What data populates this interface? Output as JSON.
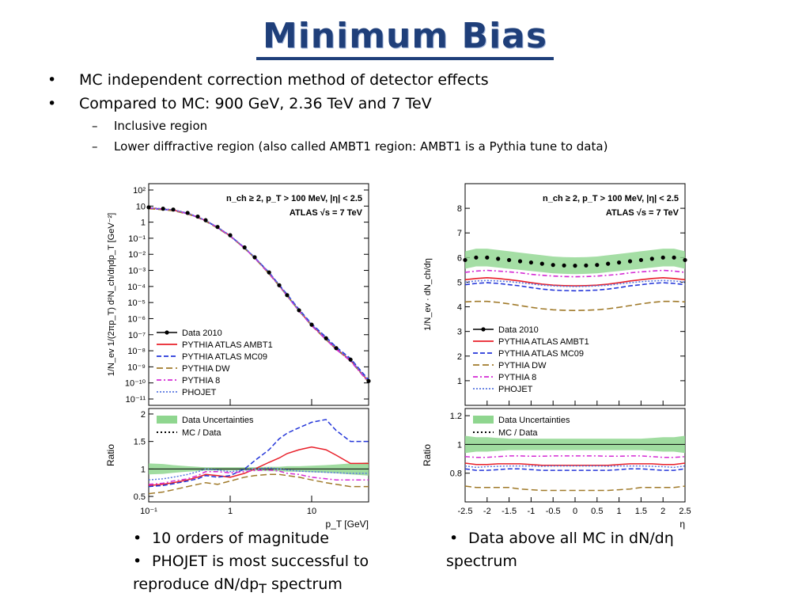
{
  "slide": {
    "title": "Minimum Bias",
    "bullets": [
      {
        "level": 1,
        "text": "MC independent correction method of detector effects"
      },
      {
        "level": 1,
        "text": "Compared to MC: 900 GeV, 2.36 TeV and 7 TeV"
      },
      {
        "level": 2,
        "text": "Inclusive region"
      },
      {
        "level": 2,
        "text": "Lower diffractive region (also called AMBT1 region: AMBT1 is a Pythia tune to data)"
      }
    ],
    "left_caption": {
      "item1": "10 orders of magnitude",
      "item2": "PHOJET is most successful to",
      "item2_cont": "reproduce dN/dp",
      "item2_sub": "T",
      "item2_tail": " spectrum"
    },
    "right_caption": {
      "item1": "Data above all MC in dN/dη",
      "item1_cont": "spectrum"
    }
  },
  "colors": {
    "title": "#1f3f7a",
    "data": "#000000",
    "ambt1": "#e8202a",
    "mc09": "#2436d9",
    "dw": "#a07a2a",
    "pythia8": "#d42ad4",
    "phojet": "#5a78e0",
    "band": "#8fd68f"
  },
  "legend_labels": {
    "data": "Data 2010",
    "ambt1": "PYTHIA ATLAS AMBT1",
    "mc09": "PYTHIA ATLAS MC09",
    "dw": "PYTHIA DW",
    "pythia8": "PYTHIA 8",
    "phojet": "PHOJET",
    "band": "Data Uncertainties",
    "mcdata": "MC / Data"
  },
  "chart_data": [
    {
      "type": "line",
      "name_key": "pt",
      "header": "n_ch ≥ 2, p_T > 100 MeV, |η| < 2.5",
      "subheader": "ATLAS √s = 7 TeV",
      "xlabel": "p_T [GeV]",
      "ylabel": "1/N_ev 1/(2πp_T) d²N_ch/dηdp_T [GeV⁻²]",
      "xscale": "log",
      "yscale": "log",
      "xlim": [
        0.1,
        50
      ],
      "ylim": [
        1e-11,
        300
      ],
      "xticks": [
        "10⁻¹",
        "1",
        "10"
      ],
      "yticks": [
        "10²",
        "10",
        "1",
        "10⁻¹",
        "10⁻²",
        "10⁻³",
        "10⁻⁴",
        "10⁻⁵",
        "10⁻⁶",
        "10⁻⁷",
        "10⁻⁸",
        "10⁻⁹",
        "10⁻¹⁰",
        "10⁻¹¹"
      ],
      "x": [
        0.1,
        0.15,
        0.2,
        0.3,
        0.4,
        0.5,
        0.7,
        1,
        1.5,
        2,
        3,
        4,
        5,
        7,
        10,
        15,
        20,
        30,
        50
      ],
      "series": [
        {
          "key": "data",
          "values": [
            11,
            9,
            8,
            5,
            3,
            1.8,
            0.7,
            0.22,
            0.04,
            0.01,
            0.0012,
            0.0002,
            5e-05,
            6e-06,
            8e-07,
            1.2e-07,
            3e-08,
            6e-09,
            3e-10
          ]
        },
        {
          "key": "ambt1",
          "values": [
            10,
            8.5,
            7.5,
            4.7,
            2.8,
            1.7,
            0.66,
            0.2,
            0.037,
            0.0095,
            0.0011,
            0.00019,
            4.8e-05,
            5.8e-06,
            7.5e-07,
            1.1e-07,
            2.8e-08,
            5.5e-09,
            2.8e-10
          ]
        },
        {
          "key": "mc09",
          "values": [
            9.5,
            8.2,
            7.2,
            4.5,
            2.7,
            1.65,
            0.64,
            0.2,
            0.038,
            0.0098,
            0.0012,
            0.00021,
            5.5e-05,
            6.8e-06,
            9e-07,
            1.4e-07,
            3.5e-08,
            7e-09,
            3.5e-10
          ]
        },
        {
          "key": "dw",
          "values": [
            9,
            7.8,
            6.8,
            4.3,
            2.6,
            1.55,
            0.6,
            0.19,
            0.035,
            0.009,
            0.001,
            0.00018,
            4.6e-05,
            5.5e-06,
            7e-07,
            1e-07,
            2.6e-08,
            5e-09,
            2.6e-10
          ]
        },
        {
          "key": "pythia8",
          "values": [
            9.8,
            8.4,
            7.4,
            4.6,
            2.75,
            1.68,
            0.65,
            0.2,
            0.036,
            0.0092,
            0.00105,
            0.00018,
            4.5e-05,
            5.4e-06,
            7e-07,
            1e-07,
            2.5e-08,
            5e-09,
            2.5e-10
          ]
        },
        {
          "key": "phojet",
          "values": [
            10.5,
            8.8,
            7.8,
            4.9,
            2.9,
            1.75,
            0.68,
            0.21,
            0.039,
            0.0098,
            0.00118,
            0.0002,
            5e-05,
            6e-06,
            8e-07,
            1.2e-07,
            3e-08,
            6e-09,
            3e-10
          ]
        }
      ],
      "ratio": {
        "ylabel": "Ratio",
        "ylim": [
          0.4,
          2.1
        ],
        "yticks": [
          0.5,
          1,
          1.5,
          2
        ],
        "band": [
          0.9,
          0.91,
          0.93,
          0.95,
          0.96,
          0.97,
          0.97,
          0.97,
          0.97,
          0.97,
          0.96,
          0.96,
          0.95,
          0.95,
          0.94,
          0.93,
          0.92,
          0.9,
          0.88
        ],
        "band_hi": [
          1.1,
          1.09,
          1.07,
          1.05,
          1.04,
          1.03,
          1.03,
          1.03,
          1.03,
          1.03,
          1.04,
          1.04,
          1.05,
          1.05,
          1.06,
          1.07,
          1.08,
          1.1,
          1.12
        ],
        "series": [
          {
            "key": "ambt1",
            "values": [
              0.7,
              0.72,
              0.75,
              0.8,
              0.85,
              0.9,
              0.88,
              0.85,
              0.92,
              1.0,
              1.12,
              1.2,
              1.28,
              1.35,
              1.4,
              1.35,
              1.25,
              1.1,
              1.1
            ]
          },
          {
            "key": "mc09",
            "values": [
              0.68,
              0.7,
              0.73,
              0.78,
              0.82,
              0.88,
              0.85,
              0.88,
              1.0,
              1.15,
              1.35,
              1.55,
              1.65,
              1.75,
              1.85,
              1.9,
              1.7,
              1.5,
              1.5
            ]
          },
          {
            "key": "dw",
            "values": [
              0.55,
              0.58,
              0.62,
              0.68,
              0.72,
              0.75,
              0.72,
              0.78,
              0.85,
              0.88,
              0.9,
              0.9,
              0.88,
              0.85,
              0.8,
              0.75,
              0.72,
              0.68,
              0.68
            ]
          },
          {
            "key": "pythia8",
            "values": [
              0.72,
              0.74,
              0.78,
              0.82,
              0.88,
              0.95,
              0.95,
              0.93,
              0.95,
              0.97,
              0.98,
              0.96,
              0.92,
              0.9,
              0.85,
              0.82,
              0.8,
              0.8,
              0.8
            ]
          },
          {
            "key": "phojet",
            "values": [
              0.8,
              0.82,
              0.85,
              0.9,
              0.95,
              1.0,
              0.98,
              0.95,
              0.98,
              1.0,
              1.02,
              1.0,
              0.98,
              0.96,
              0.95,
              0.94,
              0.93,
              0.92,
              0.92
            ]
          }
        ]
      }
    },
    {
      "type": "line",
      "name_key": "eta",
      "header": "n_ch ≥ 2, p_T > 100 MeV, |η| < 2.5",
      "subheader": "ATLAS √s = 7 TeV",
      "xlabel": "η",
      "ylabel": "1/N_ev · dN_ch/dη",
      "xlim": [
        -2.5,
        2.5
      ],
      "ylim": [
        0,
        9
      ],
      "xticks": [
        -2.5,
        -2,
        -1.5,
        -1,
        -0.5,
        0,
        0.5,
        1,
        1.5,
        2,
        2.5
      ],
      "yticks": [
        1,
        2,
        3,
        4,
        5,
        6,
        7,
        8
      ],
      "x": [
        -2.5,
        -2.25,
        -2,
        -1.75,
        -1.5,
        -1.25,
        -1,
        -0.75,
        -0.5,
        -0.25,
        0,
        0.25,
        0.5,
        0.75,
        1,
        1.25,
        1.5,
        1.75,
        2,
        2.25,
        2.5
      ],
      "series": [
        {
          "key": "data",
          "values": [
            5.9,
            6.0,
            6.0,
            5.95,
            5.9,
            5.85,
            5.8,
            5.75,
            5.7,
            5.68,
            5.67,
            5.68,
            5.7,
            5.75,
            5.8,
            5.85,
            5.9,
            5.95,
            6.0,
            6.0,
            5.9
          ]
        },
        {
          "key": "ambt1",
          "values": [
            5.1,
            5.15,
            5.18,
            5.15,
            5.1,
            5.05,
            4.98,
            4.92,
            4.88,
            4.86,
            4.85,
            4.86,
            4.88,
            4.92,
            4.98,
            5.05,
            5.1,
            5.15,
            5.18,
            5.15,
            5.1
          ]
        },
        {
          "key": "mc09",
          "values": [
            4.9,
            4.95,
            4.98,
            4.95,
            4.9,
            4.85,
            4.78,
            4.72,
            4.68,
            4.66,
            4.65,
            4.66,
            4.68,
            4.72,
            4.78,
            4.85,
            4.9,
            4.95,
            4.98,
            4.95,
            4.9
          ]
        },
        {
          "key": "dw",
          "values": [
            4.2,
            4.22,
            4.22,
            4.18,
            4.12,
            4.05,
            3.98,
            3.92,
            3.88,
            3.86,
            3.85,
            3.86,
            3.88,
            3.92,
            3.98,
            4.05,
            4.12,
            4.18,
            4.22,
            4.22,
            4.2
          ]
        },
        {
          "key": "pythia8",
          "values": [
            5.4,
            5.45,
            5.48,
            5.45,
            5.42,
            5.38,
            5.32,
            5.28,
            5.25,
            5.23,
            5.22,
            5.23,
            5.25,
            5.28,
            5.32,
            5.38,
            5.42,
            5.45,
            5.48,
            5.45,
            5.4
          ]
        },
        {
          "key": "phojet",
          "values": [
            5.0,
            5.05,
            5.07,
            5.05,
            5.02,
            4.98,
            4.93,
            4.88,
            4.85,
            4.83,
            4.82,
            4.83,
            4.85,
            4.88,
            4.93,
            4.98,
            5.02,
            5.05,
            5.07,
            5.05,
            5.0
          ]
        }
      ],
      "ratio": {
        "ylabel": "Ratio",
        "ylim": [
          0.6,
          1.25
        ],
        "yticks": [
          0.8,
          1,
          1.2
        ],
        "band": [
          0.94,
          0.95,
          0.95,
          0.955,
          0.96,
          0.96,
          0.96,
          0.96,
          0.96,
          0.96,
          0.96,
          0.96,
          0.96,
          0.96,
          0.96,
          0.96,
          0.96,
          0.955,
          0.95,
          0.95,
          0.94
        ],
        "band_hi": [
          1.06,
          1.05,
          1.05,
          1.045,
          1.04,
          1.04,
          1.04,
          1.04,
          1.04,
          1.04,
          1.04,
          1.04,
          1.04,
          1.04,
          1.04,
          1.04,
          1.04,
          1.045,
          1.05,
          1.05,
          1.06
        ],
        "series": [
          {
            "key": "ambt1",
            "values": [
              0.87,
              0.86,
              0.86,
              0.865,
              0.865,
              0.865,
              0.86,
              0.855,
              0.855,
              0.855,
              0.855,
              0.855,
              0.855,
              0.855,
              0.86,
              0.865,
              0.865,
              0.865,
              0.86,
              0.86,
              0.87
            ]
          },
          {
            "key": "mc09",
            "values": [
              0.83,
              0.82,
              0.82,
              0.825,
              0.83,
              0.83,
              0.825,
              0.82,
              0.82,
              0.82,
              0.82,
              0.82,
              0.82,
              0.82,
              0.825,
              0.83,
              0.83,
              0.825,
              0.82,
              0.82,
              0.83
            ]
          },
          {
            "key": "dw",
            "values": [
              0.71,
              0.7,
              0.7,
              0.7,
              0.7,
              0.69,
              0.685,
              0.68,
              0.68,
              0.68,
              0.68,
              0.68,
              0.68,
              0.68,
              0.685,
              0.69,
              0.7,
              0.7,
              0.7,
              0.7,
              0.71
            ]
          },
          {
            "key": "pythia8",
            "values": [
              0.915,
              0.91,
              0.91,
              0.915,
              0.92,
              0.92,
              0.918,
              0.918,
              0.92,
              0.92,
              0.92,
              0.92,
              0.92,
              0.918,
              0.918,
              0.92,
              0.92,
              0.915,
              0.91,
              0.91,
              0.915
            ]
          },
          {
            "key": "phojet",
            "values": [
              0.85,
              0.84,
              0.845,
              0.848,
              0.85,
              0.85,
              0.85,
              0.848,
              0.85,
              0.85,
              0.85,
              0.85,
              0.85,
              0.848,
              0.85,
              0.85,
              0.85,
              0.848,
              0.845,
              0.84,
              0.85
            ]
          }
        ]
      }
    }
  ]
}
